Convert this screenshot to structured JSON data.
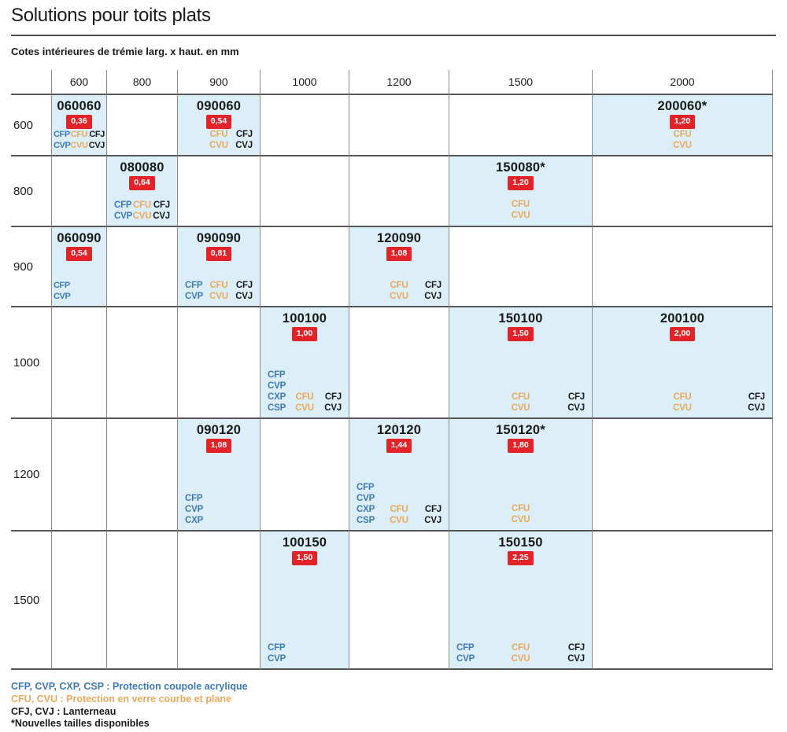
{
  "title": "Solutions pour toits plats",
  "subtitle": "Cotes intérieures de trémie larg. x haut. en mm",
  "columns": [
    "600",
    "800",
    "900",
    "1000",
    "1200",
    "1500",
    "2000"
  ],
  "row_labels": [
    "600",
    "800",
    "900",
    "1000",
    "1200",
    "1500"
  ],
  "colors": {
    "cell_background": "#dceef8",
    "badge_red": "#e3232a",
    "acrylic_blue": "#3d7ab5",
    "glass_orange": "#eaa95c",
    "lanterneau_black": "#1a1a1a"
  },
  "cells": [
    [
      {
        "code": "060060",
        "badge": "0,36",
        "layout": "grid",
        "products": [
          [
            "CFP",
            "CFU",
            "CFJ"
          ],
          [
            "CVP",
            "CVU",
            "CVJ"
          ]
        ]
      },
      null,
      {
        "code": "090060",
        "badge": "0,54",
        "layout": "grid",
        "products": [
          [
            "",
            "CFU",
            "CFJ"
          ],
          [
            "",
            "CVU",
            "CVJ"
          ]
        ]
      },
      null,
      null,
      null,
      {
        "code": "200060*",
        "badge": "1,20",
        "layout": "center",
        "products": [
          [
            "CFU"
          ],
          [
            "CVU"
          ]
        ]
      }
    ],
    [
      null,
      {
        "code": "080080",
        "badge": "0,64",
        "layout": "grid",
        "products": [
          [
            "CFP",
            "CFU",
            "CFJ"
          ],
          [
            "CVP",
            "CVU",
            "CVJ"
          ]
        ]
      },
      null,
      null,
      null,
      {
        "code": "150080*",
        "badge": "1,20",
        "layout": "center",
        "products": [
          [
            "CFU"
          ],
          [
            "CVU"
          ]
        ]
      },
      null
    ],
    [
      {
        "code": "060090",
        "badge": "0,54",
        "layout": "grid",
        "products": [
          [
            "CFP",
            "",
            ""
          ],
          [
            "CVP",
            "",
            ""
          ]
        ]
      },
      null,
      {
        "code": "090090",
        "badge": "0,81",
        "layout": "grid",
        "products": [
          [
            "CFP",
            "CFU",
            "CFJ"
          ],
          [
            "CVP",
            "CVU",
            "CVJ"
          ]
        ]
      },
      null,
      {
        "code": "120090",
        "badge": "1,08",
        "layout": "grid",
        "products": [
          [
            "",
            "CFU",
            "CFJ"
          ],
          [
            "",
            "CVU",
            "CVJ"
          ]
        ]
      },
      null,
      null
    ],
    [
      null,
      null,
      null,
      {
        "code": "100100",
        "badge": "1,00",
        "layout": "grid",
        "products": [
          [
            "CFP",
            "",
            ""
          ],
          [
            "CVP",
            "",
            ""
          ],
          [
            "CXP",
            "CFU",
            "CFJ"
          ],
          [
            "CSP",
            "CVU",
            "CVJ"
          ]
        ]
      },
      null,
      {
        "code": "150100",
        "badge": "1,50",
        "layout": "grid",
        "products": [
          [
            "",
            "CFU",
            "CFJ"
          ],
          [
            "",
            "CVU",
            "CVJ"
          ]
        ]
      },
      {
        "code": "200100",
        "badge": "2,00",
        "layout": "grid",
        "products": [
          [
            "",
            "CFU",
            "CFJ"
          ],
          [
            "",
            "CVU",
            "CVJ"
          ]
        ]
      }
    ],
    [
      null,
      null,
      {
        "code": "090120",
        "badge": "1,08",
        "layout": "grid",
        "products": [
          [
            "CFP",
            "",
            ""
          ],
          [
            "CVP",
            "",
            ""
          ],
          [
            "CXP",
            "",
            ""
          ]
        ]
      },
      null,
      {
        "code": "120120",
        "badge": "1,44",
        "layout": "grid",
        "products": [
          [
            "CFP",
            "",
            ""
          ],
          [
            "CVP",
            "",
            ""
          ],
          [
            "CXP",
            "CFU",
            "CFJ"
          ],
          [
            "CSP",
            "CVU",
            "CVJ"
          ]
        ]
      },
      {
        "code": "150120*",
        "badge": "1,80",
        "layout": "center",
        "products": [
          [
            "CFU"
          ],
          [
            "CVU"
          ]
        ]
      },
      null
    ],
    [
      null,
      null,
      null,
      {
        "code": "100150",
        "badge": "1,50",
        "layout": "grid",
        "products": [
          [
            "CFP",
            "",
            ""
          ],
          [
            "CVP",
            "",
            ""
          ]
        ]
      },
      null,
      {
        "code": "150150",
        "badge": "2,25",
        "layout": "grid",
        "products": [
          [
            "CFP",
            "CFU",
            "CFJ"
          ],
          [
            "CVP",
            "CVU",
            "CVJ"
          ]
        ]
      },
      null
    ]
  ],
  "legend": [
    {
      "text": "CFP, CVP, CXP, CSP : Protection coupole acrylique",
      "color": "blue"
    },
    {
      "text": "CFU, CVU : Protection en verre courbe et plane",
      "color": "orange"
    },
    {
      "text": "CFJ, CVJ : Lanterneau",
      "color": "black"
    },
    {
      "text": "*Nouvelles tailles disponibles",
      "color": "black"
    }
  ]
}
